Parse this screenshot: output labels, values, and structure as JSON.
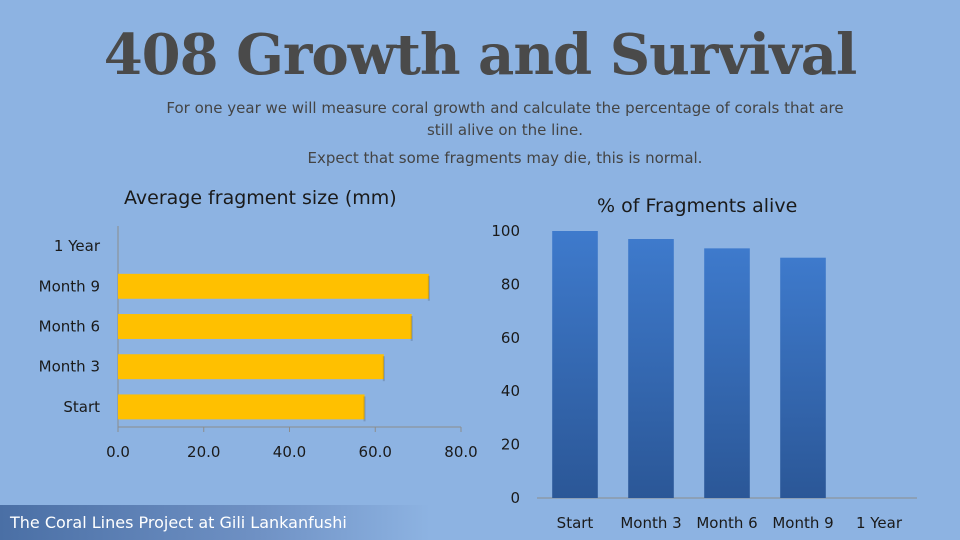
{
  "page": {
    "title": "408 Growth and Survival",
    "subtitle_line1": "For one year we will measure coral growth and calculate the percentage of corals that are still alive on the line.",
    "subtitle_line2": "Expect that some fragments may die, this is normal.",
    "footer": "The Coral Lines Project at Gili Lankanfushi"
  },
  "colors": {
    "background": "#8db3e2",
    "bar_fill_left": "#ffc000",
    "bar_fill_right_top": "#3e7acc",
    "bar_fill_right_bottom": "#2b5797",
    "axis": "#8c8c8c"
  },
  "chart_data": [
    {
      "type": "bar",
      "orientation": "horizontal",
      "title": "Average fragment size (mm)",
      "categories": [
        "Start",
        "Month 3",
        "Month 6",
        "Month 9",
        "1 Year"
      ],
      "values": [
        57.5,
        62,
        68.5,
        72.5,
        null
      ],
      "xlim": [
        0,
        80
      ],
      "tick_labels": [
        "0.0",
        "20.0",
        "40.0",
        "60.0",
        "80.0"
      ],
      "grid": false
    },
    {
      "type": "bar",
      "orientation": "vertical",
      "title": "% of Fragments alive",
      "categories": [
        "Start",
        "Month 3",
        "Month 6",
        "Month 9",
        "1 Year"
      ],
      "values": [
        100,
        97,
        93.5,
        90,
        null
      ],
      "ylim": [
        0,
        100
      ],
      "tick_labels": [
        "0",
        "20",
        "40",
        "60",
        "80",
        "100"
      ],
      "grid": false
    }
  ]
}
